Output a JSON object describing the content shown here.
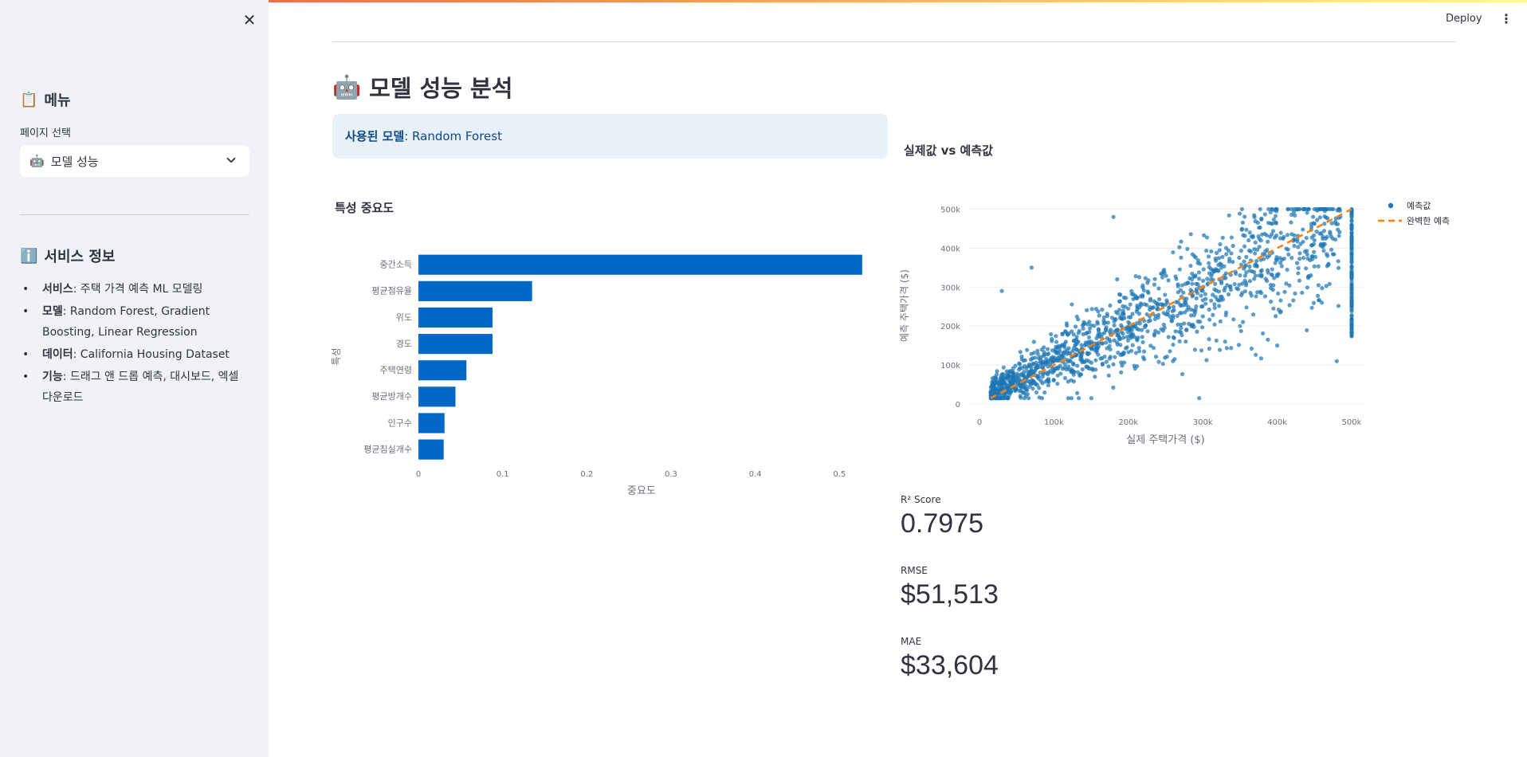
{
  "sidebar": {
    "menu_title": "메뉴",
    "menu_emoji": "📋",
    "select_label": "페이지 선택",
    "select_value": "모델 성능",
    "select_emoji": "🤖",
    "info_title": "서비스 정보",
    "info_emoji": "ℹ️",
    "info_items": [
      {
        "key": "서비스",
        "value": ": 주택 가격 예측 ML 모델링"
      },
      {
        "key": "모델",
        "value": ": Random Forest, Gradient Boosting, Linear Regression"
      },
      {
        "key": "데이터",
        "value": ": California Housing Dataset"
      },
      {
        "key": "기능",
        "value": ": 드래그 앤 드롭 예측, 대시보드, 엑셀 다운로드"
      }
    ]
  },
  "header": {
    "deploy_label": "Deploy"
  },
  "main": {
    "title": "모델 성능 분석",
    "title_emoji": "🤖",
    "model_label": "사용된 모델",
    "model_value": ": Random Forest",
    "feature_importance_title": "특성 중요도",
    "scatter_title": "실제값 vs 예측값"
  },
  "metrics": [
    {
      "label": "R² Score",
      "value": "0.7975"
    },
    {
      "label": "RMSE",
      "value": "$51,513"
    },
    {
      "label": "MAE",
      "value": "$33,604"
    }
  ],
  "colors": {
    "bar": "#0068c9",
    "scatter": "#1f77b4",
    "perfect_line": "#ff7f0e",
    "sidebar_bg": "#f0f2f6",
    "info_bg": "#e8f0fa"
  },
  "chart_data": [
    {
      "type": "bar",
      "orientation": "horizontal",
      "categories": [
        "중간소득",
        "평균점유율",
        "위도",
        "경도",
        "주택연령",
        "평균방개수",
        "인구수",
        "평균침실개수"
      ],
      "values": [
        0.527,
        0.135,
        0.088,
        0.088,
        0.057,
        0.044,
        0.031,
        0.03
      ],
      "xlabel": "중요도",
      "ylabel": "특성",
      "xticks": [
        "0",
        "0.1",
        "0.2",
        "0.3",
        "0.4",
        "0.5"
      ],
      "xlim": [
        0,
        0.53
      ]
    },
    {
      "type": "scatter",
      "xlabel": "실제 주택가격 ($)",
      "ylabel": "예측 주택가격 ($)",
      "xticks": [
        "0",
        "100k",
        "200k",
        "300k",
        "400k",
        "500k"
      ],
      "yticks": [
        "0",
        "100k",
        "200k",
        "300k",
        "400k",
        "500k"
      ],
      "xlim": [
        -15000,
        515000
      ],
      "ylim": [
        0,
        505000
      ],
      "legend_position": "top-right",
      "series": [
        {
          "name": "예측값",
          "kind": "points",
          "approx_count": 1500
        },
        {
          "name": "완벽한 예측",
          "kind": "line",
          "dashed": true,
          "x": [
            15000,
            500000
          ],
          "y": [
            15000,
            500000
          ]
        }
      ],
      "sample_points": [
        [
          40000,
          45000
        ],
        [
          60000,
          70000
        ],
        [
          80000,
          95000
        ],
        [
          100000,
          110000
        ],
        [
          120000,
          130000
        ],
        [
          150000,
          160000
        ],
        [
          175000,
          185000
        ],
        [
          200000,
          210000
        ],
        [
          225000,
          230000
        ],
        [
          250000,
          255000
        ],
        [
          275000,
          270000
        ],
        [
          300000,
          290000
        ],
        [
          325000,
          310000
        ],
        [
          350000,
          330000
        ],
        [
          400000,
          370000
        ],
        [
          450000,
          420000
        ],
        [
          500001,
          480000
        ],
        [
          500001,
          350000
        ],
        [
          500001,
          250000
        ],
        [
          500001,
          180000
        ],
        [
          30000,
          290000
        ],
        [
          70000,
          350000
        ],
        [
          180000,
          480000
        ],
        [
          480000,
          110000
        ],
        [
          400000,
          150000
        ],
        [
          460000,
          260000
        ],
        [
          350000,
          200000
        ],
        [
          260000,
          110000
        ],
        [
          220000,
          120000
        ],
        [
          330000,
          160000
        ]
      ]
    }
  ]
}
